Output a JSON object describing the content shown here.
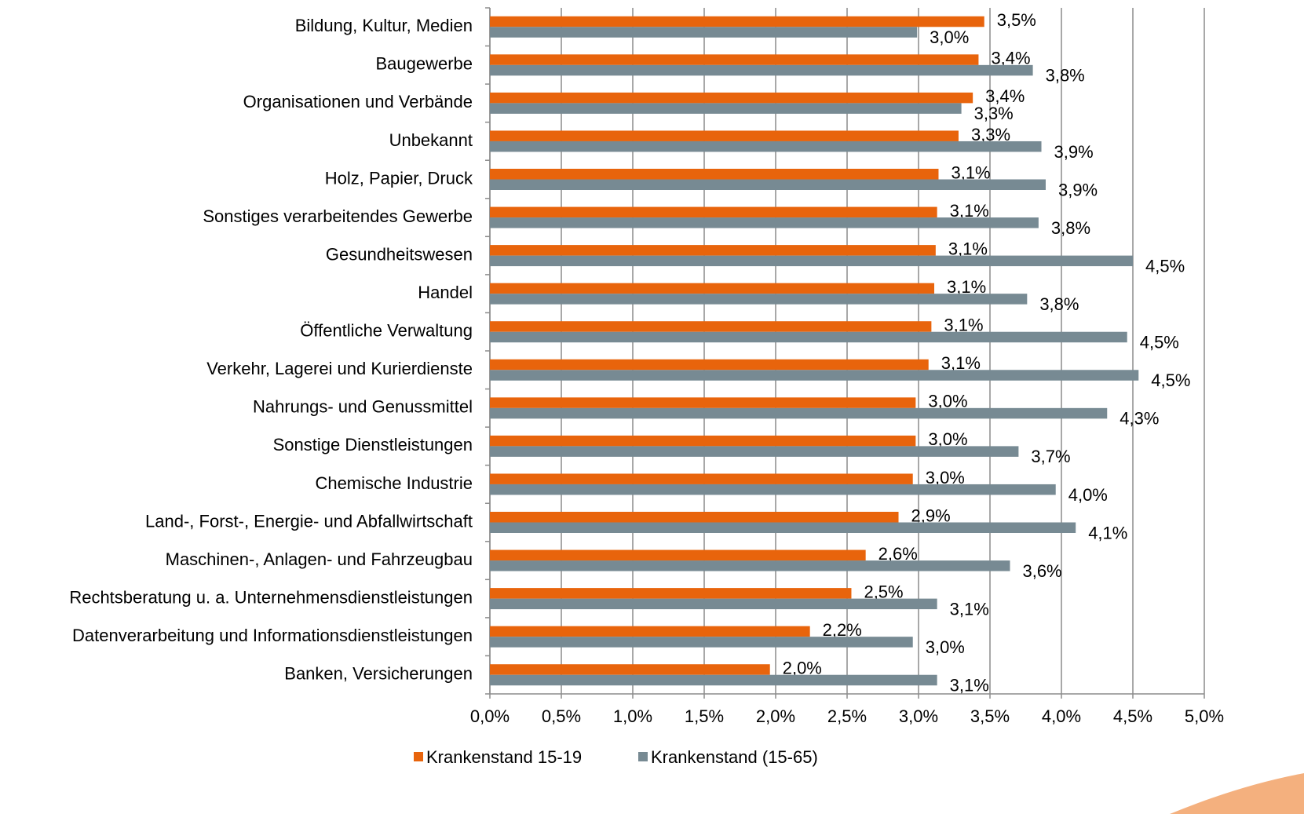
{
  "chart_data": {
    "type": "barh",
    "categories": [
      "Bildung, Kultur, Medien",
      "Baugewerbe",
      "Organisationen und Verbände",
      "Unbekannt",
      "Holz, Papier, Druck",
      "Sonstiges verarbeitendes Gewerbe",
      "Gesundheitswesen",
      "Handel",
      "Öffentliche Verwaltung",
      "Verkehr, Lagerei und Kurierdienste",
      "Nahrungs- und Genussmittel",
      "Sonstige Dienstleistungen",
      "Chemische Industrie",
      "Land-, Forst-,  Energie- und Abfallwirtschaft",
      "Maschinen-, Anlagen- und Fahrzeugbau",
      "Rechtsberatung u. a. Unternehmensdienstleistungen",
      "Datenverarbeitung und Informationsdienstleistungen",
      "Banken, Versicherungen"
    ],
    "series": [
      {
        "name": "Krankenstand 15-19",
        "color": "#e8640c",
        "values": [
          3.46,
          3.42,
          3.38,
          3.28,
          3.14,
          3.13,
          3.12,
          3.11,
          3.09,
          3.07,
          2.98,
          2.98,
          2.96,
          2.86,
          2.63,
          2.53,
          2.24,
          1.96
        ],
        "value_labels": [
          "3,5%",
          "3,4%",
          "3,4%",
          "3,3%",
          "3,1%",
          "3,1%",
          "3,1%",
          "3,1%",
          "3,1%",
          "3,1%",
          "3,0%",
          "3,0%",
          "3,0%",
          "2,9%",
          "2,6%",
          "2,5%",
          "2,2%",
          "2,0%"
        ]
      },
      {
        "name": "Krankenstand (15-65)",
        "color": "#778a93",
        "values": [
          2.99,
          3.8,
          3.3,
          3.86,
          3.89,
          3.84,
          4.5,
          3.76,
          4.46,
          4.54,
          4.32,
          3.7,
          3.96,
          4.1,
          3.64,
          3.13,
          2.96,
          3.13
        ],
        "value_labels": [
          "3,0%",
          "3,8%",
          "3,3%",
          "3,9%",
          "3,9%",
          "3,8%",
          "4,5%",
          "3,8%",
          "4,5%",
          "4,5%",
          "4,3%",
          "3,7%",
          "4,0%",
          "4,1%",
          "3,6%",
          "3,1%",
          "3,0%",
          "3,1%"
        ]
      }
    ],
    "xlim": [
      0,
      5
    ],
    "xticks": [
      {
        "value": 0,
        "label": "0,0%"
      },
      {
        "value": 0.5,
        "label": "0,5%"
      },
      {
        "value": 1,
        "label": "1,0%"
      },
      {
        "value": 1.5,
        "label": "1,5%"
      },
      {
        "value": 2,
        "label": "2,0%"
      },
      {
        "value": 2.5,
        "label": "2,5%"
      },
      {
        "value": 3,
        "label": "3,0%"
      },
      {
        "value": 3.5,
        "label": "3,5%"
      },
      {
        "value": 4,
        "label": "4,0%"
      },
      {
        "value": 4.5,
        "label": "4,5%"
      },
      {
        "value": 5,
        "label": "5,0%"
      }
    ],
    "grid": true,
    "legend": "bottom"
  }
}
